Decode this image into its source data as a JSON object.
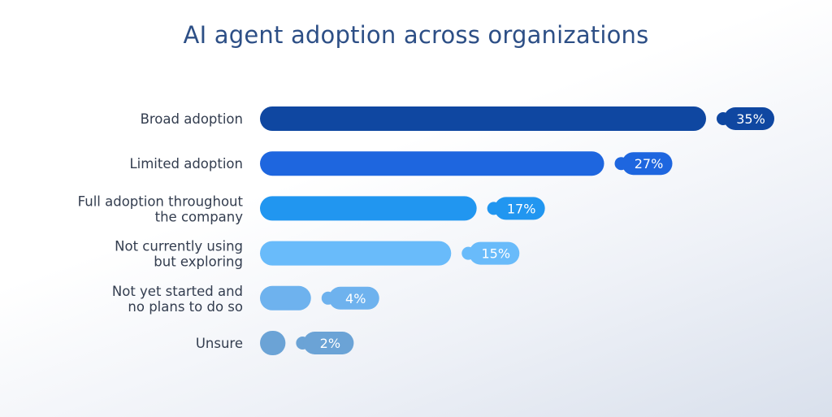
{
  "chart_data": {
    "type": "bar",
    "orientation": "horizontal",
    "title": "AI agent adoption across organizations",
    "categories": [
      [
        "Broad adoption"
      ],
      [
        "Limited adoption"
      ],
      [
        "Full adoption throughout",
        "the company"
      ],
      [
        "Not currently using",
        "but exploring"
      ],
      [
        "Not yet started and",
        "no plans to do so"
      ],
      [
        "Unsure"
      ]
    ],
    "values": [
      35,
      27,
      17,
      15,
      4,
      2
    ],
    "value_labels": [
      "35%",
      "27%",
      "17%",
      "15%",
      "4%",
      "2%"
    ],
    "colors": [
      "#0f47a1",
      "#1e66df",
      "#2196f0",
      "#69bbfa",
      "#6eb2ee",
      "#6ba3d6"
    ],
    "unit": "%",
    "xlim": [
      0,
      35
    ],
    "grid": false,
    "legend": "none"
  }
}
